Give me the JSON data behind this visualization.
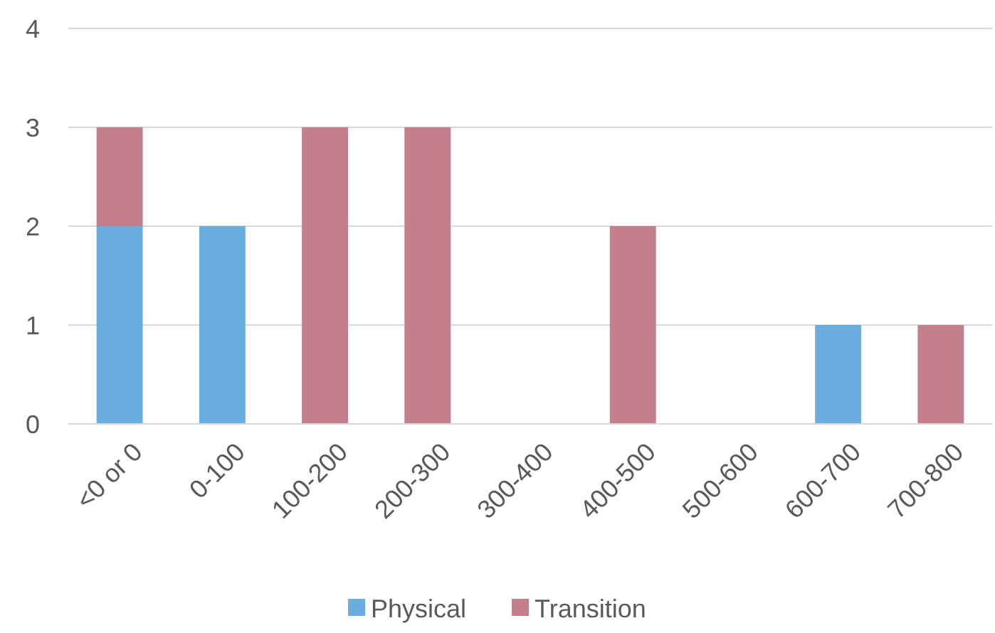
{
  "chart_data": {
    "type": "bar",
    "stacked": true,
    "categories": [
      "<0 or 0",
      "0-100",
      "100-200",
      "200-300",
      "300-400",
      "400-500",
      "500-600",
      "600-700",
      "700-800"
    ],
    "series": [
      {
        "name": "Physical",
        "color": "#6aaee0",
        "values": [
          2,
          2,
          0,
          0,
          0,
          0,
          0,
          1,
          0
        ]
      },
      {
        "name": "Transition",
        "color": "#c47f8c",
        "values": [
          1,
          0,
          3,
          3,
          0,
          2,
          0,
          0,
          1
        ]
      }
    ],
    "ylim": [
      0,
      4
    ],
    "yticks": [
      0,
      1,
      2,
      3,
      4
    ],
    "grid": "y",
    "legend": "bottom"
  }
}
